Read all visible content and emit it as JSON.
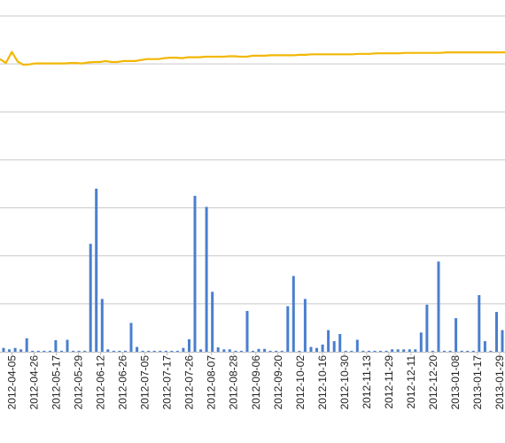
{
  "chart_data": {
    "type": "bar",
    "title": "",
    "xlabel": "",
    "ylabel": "",
    "ylim": [
      0,
      7
    ],
    "grid": true,
    "legend": "none",
    "colors": {
      "bars": "#4a7fce",
      "line": "#f2b705",
      "grid": "#c8c8c8"
    },
    "tick_labels": [
      "2012-04-05",
      "2012-04-26",
      "2012-05-17",
      "2012-05-29",
      "2012-06-12",
      "2012-06-26",
      "2012-07-05",
      "2012-07-17",
      "2012-07-26",
      "2012-08-07",
      "2012-08-28",
      "2012-09-06",
      "2012-09-20",
      "2012-10-02",
      "2012-10-16",
      "2012-10-30",
      "2012-11-13",
      "2012-11-29",
      "2012-12-11",
      "2012-12-20",
      "2013-01-08",
      "2013-01-17",
      "2013-01-29"
    ],
    "series": [
      {
        "type": "bar",
        "values": [
          0.08,
          0.05,
          0.08,
          0.05,
          0.28,
          0.02,
          0.02,
          0.02,
          0.02,
          0.24,
          0.02,
          0.25,
          0.02,
          0.02,
          0.02,
          2.25,
          3.4,
          1.1,
          0.05,
          0.02,
          0.02,
          0.02,
          0.6,
          0.1,
          0.02,
          0.02,
          0.02,
          0.02,
          0.02,
          0.02,
          0.02,
          0.08,
          0.26,
          3.25,
          0.05,
          3.02,
          1.25,
          0.09,
          0.05,
          0.05,
          0.02,
          0.02,
          0.85,
          0.02,
          0.06,
          0.06,
          0.02,
          0.02,
          0.02,
          0.95,
          1.58,
          0.02,
          1.1,
          0.1,
          0.08,
          0.15,
          0.45,
          0.22,
          0.37,
          0.02,
          0.02,
          0.25,
          0.02,
          0.02,
          0.02,
          0.02,
          0.02,
          0.05,
          0.05,
          0.05,
          0.05,
          0.05,
          0.4,
          0.98,
          0.02,
          1.88,
          0.02,
          0.02,
          0.7,
          0.02,
          0.02,
          0.02,
          1.18,
          0.22,
          0.02,
          0.83,
          0.45
        ]
      },
      {
        "type": "line",
        "values": [
          6.1,
          6.02,
          6.25,
          6.05,
          5.98,
          5.99,
          6.01,
          6.01,
          6.01,
          6.01,
          6.01,
          6.01,
          6.02,
          6.02,
          6.01,
          6.03,
          6.04,
          6.04,
          6.06,
          6.04,
          6.04,
          6.06,
          6.06,
          6.06,
          6.08,
          6.1,
          6.1,
          6.1,
          6.12,
          6.13,
          6.13,
          6.12,
          6.14,
          6.14,
          6.14,
          6.15,
          6.15,
          6.15,
          6.15,
          6.16,
          6.16,
          6.15,
          6.15,
          6.17,
          6.17,
          6.17,
          6.18,
          6.18,
          6.18,
          6.18,
          6.18,
          6.19,
          6.19,
          6.2,
          6.2,
          6.2,
          6.2,
          6.2,
          6.2,
          6.2,
          6.2,
          6.21,
          6.21,
          6.21,
          6.22,
          6.22,
          6.22,
          6.22,
          6.22,
          6.23,
          6.23,
          6.23,
          6.23,
          6.23,
          6.23,
          6.23,
          6.24,
          6.24,
          6.24,
          6.24,
          6.24,
          6.24,
          6.24,
          6.24,
          6.24,
          6.24,
          6.24
        ]
      }
    ]
  }
}
